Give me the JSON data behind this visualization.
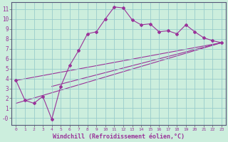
{
  "background_color": "#cceedd",
  "grid_color": "#99cccc",
  "line_color": "#993399",
  "xlabel": "Windchill (Refroidissement éolien,°C)",
  "xlim": [
    -0.5,
    23.5
  ],
  "ylim": [
    -0.7,
    11.7
  ],
  "xticks": [
    0,
    1,
    2,
    3,
    4,
    5,
    6,
    7,
    8,
    9,
    10,
    11,
    12,
    13,
    14,
    15,
    16,
    17,
    18,
    19,
    20,
    21,
    22,
    23
  ],
  "yticks": [
    0,
    1,
    2,
    3,
    4,
    5,
    6,
    7,
    8,
    9,
    10,
    11
  ],
  "line1_x": [
    0,
    1,
    2,
    3,
    4,
    5,
    6,
    7,
    8,
    9,
    10,
    11,
    12,
    13,
    14,
    15,
    16,
    17,
    18,
    19,
    20,
    21,
    22,
    23
  ],
  "line1_y": [
    3.8,
    1.8,
    1.5,
    2.2,
    -0.1,
    3.2,
    5.3,
    6.8,
    8.5,
    8.7,
    10.0,
    11.2,
    11.1,
    9.9,
    9.4,
    9.5,
    8.7,
    8.8,
    8.5,
    9.4,
    8.7,
    8.1,
    7.8,
    7.6
  ],
  "line2_x": [
    0,
    23
  ],
  "line2_y": [
    3.8,
    7.6
  ],
  "line3_x": [
    4,
    23
  ],
  "line3_y": [
    3.2,
    7.6
  ],
  "line4_x": [
    0,
    23
  ],
  "line4_y": [
    1.5,
    7.6
  ]
}
